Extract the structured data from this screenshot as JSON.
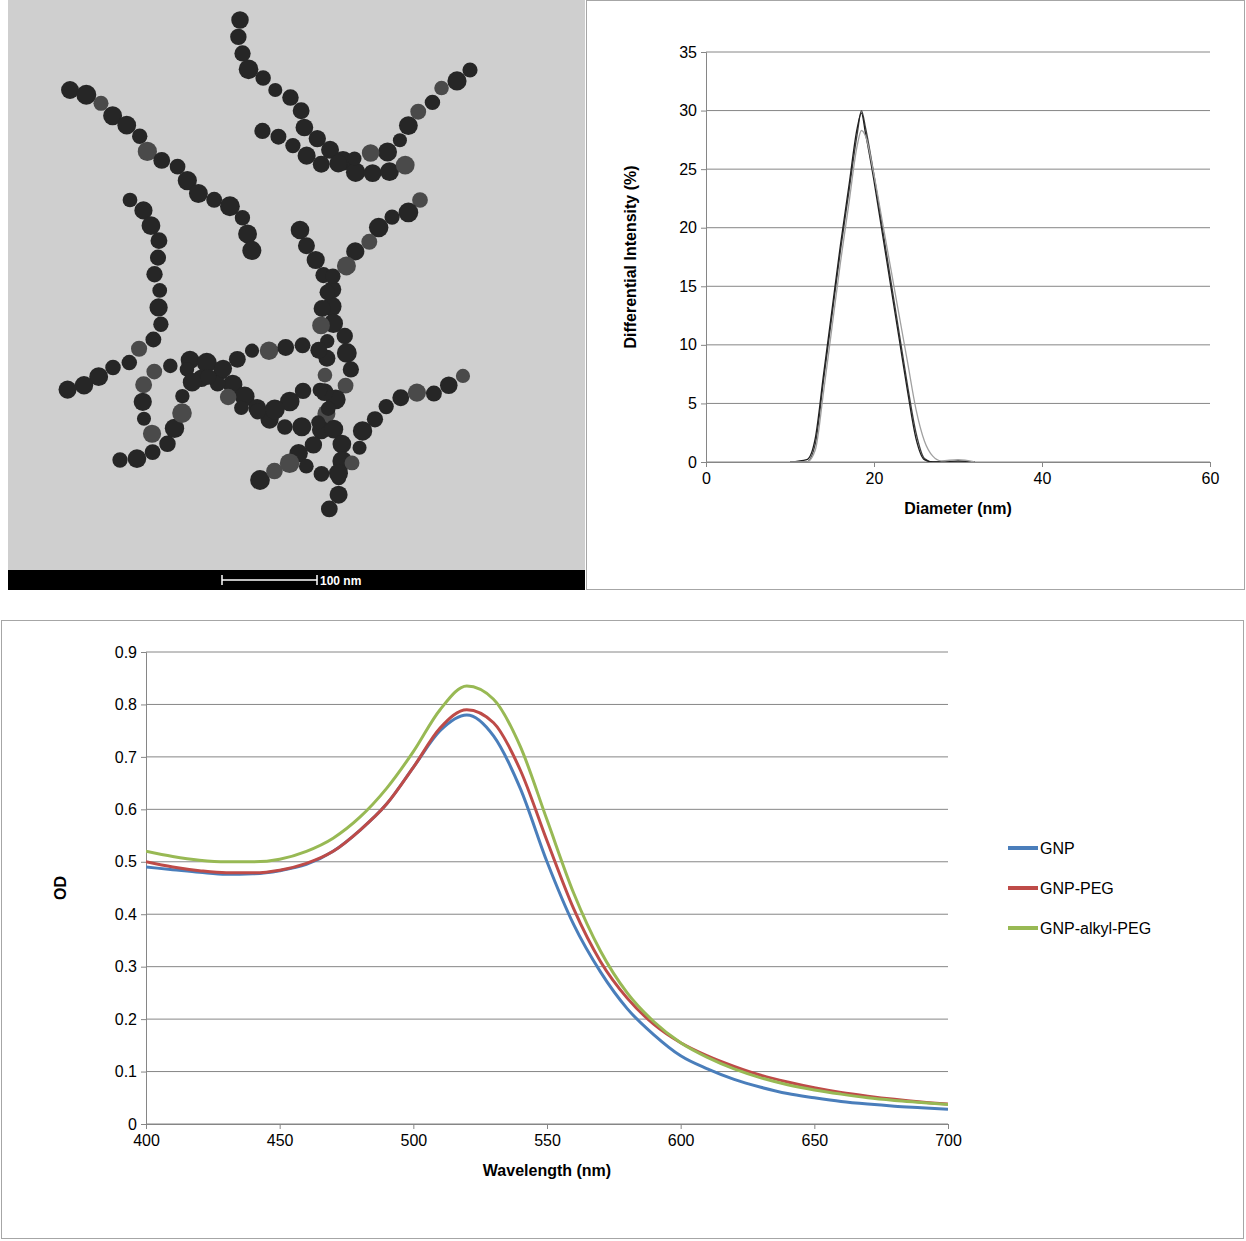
{
  "chart_data": [
    {
      "type": "line",
      "x_label": "Diameter (nm)",
      "y_label": "Differential Intensity (%)",
      "x": [
        10,
        12,
        13,
        14,
        15,
        16,
        17,
        18,
        18.5,
        19,
        20,
        21,
        22,
        23,
        24,
        25,
        26,
        27,
        28,
        30,
        32
      ],
      "series": [
        {
          "color": "#404040",
          "values": [
            0,
            0,
            1.5,
            7,
            12.5,
            18,
            23,
            28,
            30,
            28.5,
            24.5,
            20,
            15.5,
            11,
            6.5,
            2.5,
            0.3,
            0,
            0,
            0,
            0
          ]
        },
        {
          "color": "#202020",
          "values": [
            0,
            0.2,
            2,
            7.5,
            13,
            18.5,
            23.5,
            28.5,
            29.8,
            28,
            24,
            19.5,
            15,
            10.5,
            6,
            2,
            0.2,
            0,
            0,
            0.1,
            0
          ]
        },
        {
          "color": "#a0a0a0",
          "values": [
            0,
            0,
            1,
            6,
            11.5,
            17,
            22,
            27,
            28.3,
            27.8,
            24.5,
            20.5,
            16.5,
            12.5,
            8.5,
            4.5,
            1.8,
            0.5,
            0.1,
            0.2,
            0
          ]
        }
      ],
      "xlim": [
        0,
        60
      ],
      "xticks": [
        0,
        20,
        40,
        60
      ],
      "ylim": [
        0,
        35
      ],
      "yticks": [
        0,
        5,
        10,
        15,
        20,
        25,
        30,
        35
      ],
      "grid": true
    },
    {
      "type": "line",
      "x_label": "Wavelength (nm)",
      "y_label": "OD",
      "x": [
        400,
        410,
        420,
        430,
        440,
        450,
        460,
        470,
        480,
        490,
        500,
        510,
        520,
        530,
        540,
        550,
        560,
        570,
        580,
        590,
        600,
        610,
        620,
        630,
        640,
        650,
        660,
        670,
        680,
        690,
        700
      ],
      "series": [
        {
          "name": "GNP",
          "color": "#4a7ebb",
          "values": [
            0.49,
            0.485,
            0.48,
            0.476,
            0.477,
            0.483,
            0.495,
            0.52,
            0.56,
            0.61,
            0.68,
            0.75,
            0.78,
            0.74,
            0.64,
            0.5,
            0.38,
            0.29,
            0.22,
            0.17,
            0.13,
            0.105,
            0.085,
            0.07,
            0.058,
            0.05,
            0.043,
            0.038,
            0.034,
            0.031,
            0.028
          ]
        },
        {
          "name": "GNP-PEG",
          "color": "#be4b48",
          "values": [
            0.5,
            0.49,
            0.483,
            0.479,
            0.479,
            0.484,
            0.497,
            0.52,
            0.56,
            0.61,
            0.68,
            0.755,
            0.79,
            0.765,
            0.675,
            0.54,
            0.41,
            0.31,
            0.24,
            0.19,
            0.155,
            0.13,
            0.11,
            0.093,
            0.08,
            0.069,
            0.06,
            0.053,
            0.047,
            0.042,
            0.038
          ]
        },
        {
          "name": "GNP-alkyl-PEG",
          "color": "#98b954",
          "values": [
            0.52,
            0.51,
            0.503,
            0.5,
            0.5,
            0.505,
            0.52,
            0.545,
            0.585,
            0.64,
            0.71,
            0.79,
            0.835,
            0.81,
            0.72,
            0.58,
            0.44,
            0.33,
            0.25,
            0.195,
            0.155,
            0.127,
            0.105,
            0.088,
            0.075,
            0.065,
            0.057,
            0.05,
            0.045,
            0.041,
            0.037
          ]
        }
      ],
      "xlim": [
        400,
        700
      ],
      "xticks": [
        400,
        450,
        500,
        550,
        600,
        650,
        700
      ],
      "ylim": [
        0,
        0.9
      ],
      "yticks": [
        0,
        0.1,
        0.2,
        0.3,
        0.4,
        0.5,
        0.6,
        0.7,
        0.8,
        0.9
      ],
      "grid": true,
      "legend": "right"
    }
  ],
  "micrograph": {
    "scale_bar": "100 nm"
  }
}
